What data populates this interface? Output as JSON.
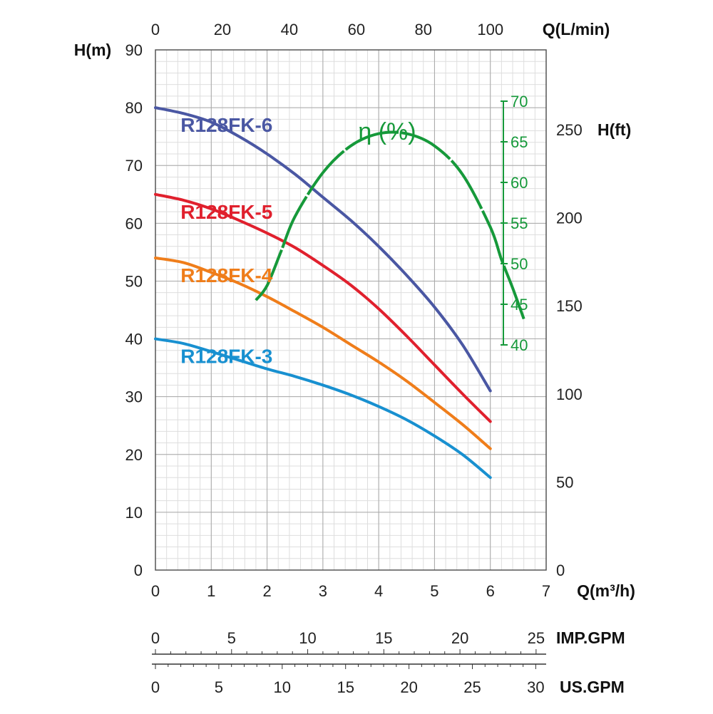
{
  "chart_data": {
    "type": "line",
    "title": "",
    "xlabel": "Q(m³/h)",
    "ylabel": "H(m)",
    "xlim": [
      0,
      7
    ],
    "ylim": [
      0,
      90
    ],
    "x_ticks": [
      0,
      1,
      2,
      3,
      4,
      5,
      6,
      7
    ],
    "y_ticks": [
      0,
      10,
      20,
      30,
      40,
      50,
      60,
      70,
      80,
      90
    ],
    "grid": true,
    "top_axis": {
      "label": "Q(L/min)",
      "ticks": [
        0,
        20,
        40,
        60,
        80,
        100
      ],
      "per_m3h": 16.6667
    },
    "right_axis": {
      "label": "H(ft)",
      "ticks": [
        0,
        50,
        100,
        150,
        200,
        250
      ],
      "per_m": 3.28084
    },
    "imp_gpm_axis": {
      "label": "IMP.GPM",
      "ticks": [
        0,
        5,
        10,
        15,
        20,
        25
      ],
      "per_m3h": 3.666
    },
    "us_gpm_axis": {
      "label": "US.GPM",
      "ticks": [
        0,
        5,
        10,
        15,
        20,
        25,
        30
      ],
      "per_m3h": 4.403
    },
    "series": [
      {
        "name": "R128FK-6",
        "color": "#4a57a3",
        "x": [
          0,
          0.5,
          1,
          1.5,
          2,
          2.5,
          3,
          3.5,
          4,
          4.5,
          5,
          5.5,
          6
        ],
        "y": [
          80,
          79,
          77.5,
          75,
          72,
          68.5,
          64.5,
          60.5,
          56,
          51,
          45.5,
          39,
          31
        ]
      },
      {
        "name": "R128FK-5",
        "color": "#e0202d",
        "x": [
          0,
          0.5,
          1,
          1.5,
          2,
          2.5,
          3,
          3.5,
          4,
          4.5,
          5,
          5.5,
          6
        ],
        "y": [
          65,
          64,
          62.5,
          60.5,
          58.3,
          55.8,
          52.7,
          49.3,
          45.2,
          40.5,
          35.5,
          30.5,
          25.7
        ]
      },
      {
        "name": "R128FK-4",
        "color": "#ef7d1a",
        "x": [
          0,
          0.5,
          1,
          1.5,
          2,
          2.5,
          3,
          3.5,
          4,
          4.5,
          5,
          5.5,
          6
        ],
        "y": [
          54,
          53.2,
          51.5,
          49.6,
          47.3,
          44.7,
          42,
          39,
          36,
          32.7,
          29,
          25.2,
          21
        ]
      },
      {
        "name": "R128FK-3",
        "color": "#1890d0",
        "x": [
          0,
          0.5,
          1,
          1.5,
          2,
          2.5,
          3,
          3.5,
          4,
          4.5,
          5,
          5.5,
          6
        ],
        "y": [
          40,
          39.2,
          37.8,
          36.3,
          34.8,
          33.5,
          32,
          30.3,
          28.3,
          26,
          23.2,
          20,
          16
        ]
      }
    ],
    "efficiency": {
      "name": "η (%)",
      "color": "#16993a",
      "axis_ticks": [
        40,
        45,
        50,
        55,
        60,
        65,
        70
      ],
      "x": [
        1.8,
        2,
        2.25,
        2.5,
        3,
        3.5,
        4,
        4.5,
        5,
        5.5,
        6,
        6.2,
        6.4,
        6.6
      ],
      "y": [
        45.5,
        47.3,
        51.5,
        55.8,
        61.2,
        64.5,
        66,
        66,
        64.5,
        61,
        54.5,
        50.5,
        47,
        43.2
      ]
    }
  }
}
